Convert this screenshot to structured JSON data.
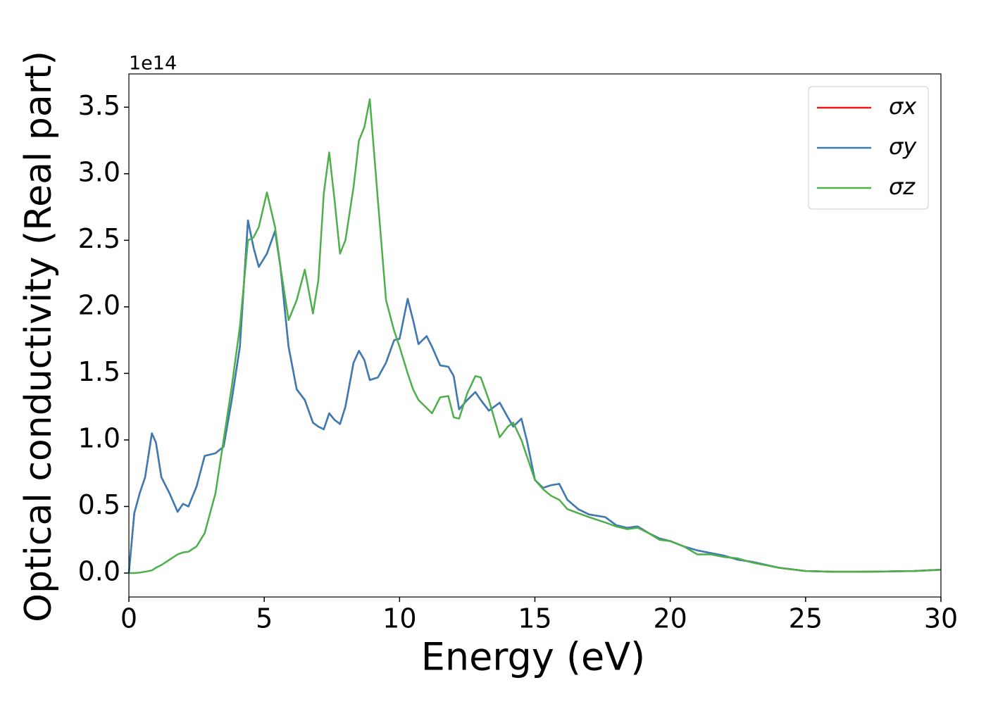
{
  "chart_data": {
    "type": "line",
    "xlabel": "Energy (eV)",
    "ylabel": "Optical conductivity (Real part)",
    "offset_label": "1e14",
    "xlim": [
      0,
      30
    ],
    "ylim": [
      -0.18,
      3.75
    ],
    "xticks": [
      0,
      5,
      10,
      15,
      20,
      25,
      30
    ],
    "yticks": [
      {
        "value": 0,
        "label": "0.0"
      },
      0.5,
      {
        "value": 1,
        "label": "1.0"
      },
      1.5,
      {
        "value": 2,
        "label": "2.0"
      },
      2.5,
      {
        "value": 3,
        "label": "3.0"
      },
      3.5
    ],
    "grid": false,
    "legend": "upper right",
    "x": [
      0,
      0.2,
      0.4,
      0.6,
      0.85,
      1.0,
      1.2,
      1.5,
      1.8,
      2.0,
      2.2,
      2.5,
      2.8,
      3.2,
      3.5,
      3.8,
      4.1,
      4.4,
      4.6,
      4.8,
      5.1,
      5.4,
      5.6,
      5.9,
      6.2,
      6.5,
      6.8,
      7.0,
      7.2,
      7.4,
      7.6,
      7.8,
      8.0,
      8.3,
      8.5,
      8.7,
      8.9,
      9.2,
      9.5,
      9.8,
      10.0,
      10.3,
      10.5,
      10.7,
      11.0,
      11.2,
      11.5,
      11.8,
      12.0,
      12.2,
      12.5,
      12.8,
      13.0,
      13.3,
      13.7,
      14.0,
      14.2,
      14.5,
      14.7,
      15.0,
      15.3,
      15.6,
      15.9,
      16.2,
      16.6,
      17.0,
      17.6,
      18.0,
      18.4,
      18.8,
      19.2,
      19.6,
      20.0,
      20.5,
      21.0,
      21.5,
      22.0,
      22.5,
      23.0,
      24.0,
      25.0,
      26.0,
      27.0,
      28.0,
      29.0,
      30.0
    ],
    "series": [
      {
        "name": "σx",
        "color": "#e41a1c",
        "values": [
          0,
          0.45,
          0.6,
          0.72,
          1.05,
          0.98,
          0.72,
          0.6,
          0.46,
          0.52,
          0.5,
          0.65,
          0.88,
          0.9,
          0.95,
          1.3,
          1.7,
          2.65,
          2.45,
          2.3,
          2.4,
          2.57,
          2.3,
          1.7,
          1.38,
          1.3,
          1.13,
          1.1,
          1.08,
          1.2,
          1.15,
          1.12,
          1.25,
          1.58,
          1.67,
          1.6,
          1.45,
          1.47,
          1.58,
          1.75,
          1.76,
          2.06,
          1.9,
          1.72,
          1.78,
          1.7,
          1.56,
          1.55,
          1.48,
          1.23,
          1.3,
          1.36,
          1.3,
          1.22,
          1.28,
          1.17,
          1.1,
          1.16,
          1.0,
          0.7,
          0.64,
          0.66,
          0.67,
          0.55,
          0.48,
          0.44,
          0.42,
          0.36,
          0.34,
          0.35,
          0.3,
          0.26,
          0.24,
          0.2,
          0.17,
          0.15,
          0.13,
          0.1,
          0.085,
          0.04,
          0.015,
          0.01,
          0.01,
          0.012,
          0.015,
          0.025
        ]
      },
      {
        "name": "σy",
        "color": "#377eb8",
        "values": [
          0,
          0.45,
          0.6,
          0.72,
          1.05,
          0.98,
          0.72,
          0.6,
          0.46,
          0.52,
          0.5,
          0.65,
          0.88,
          0.9,
          0.95,
          1.3,
          1.7,
          2.65,
          2.45,
          2.3,
          2.4,
          2.57,
          2.3,
          1.7,
          1.38,
          1.3,
          1.13,
          1.1,
          1.08,
          1.2,
          1.15,
          1.12,
          1.25,
          1.58,
          1.67,
          1.6,
          1.45,
          1.47,
          1.58,
          1.75,
          1.76,
          2.06,
          1.9,
          1.72,
          1.78,
          1.7,
          1.56,
          1.55,
          1.48,
          1.23,
          1.3,
          1.36,
          1.3,
          1.22,
          1.28,
          1.17,
          1.1,
          1.16,
          1.0,
          0.7,
          0.64,
          0.66,
          0.67,
          0.55,
          0.48,
          0.44,
          0.42,
          0.36,
          0.34,
          0.35,
          0.3,
          0.26,
          0.24,
          0.2,
          0.17,
          0.15,
          0.13,
          0.1,
          0.085,
          0.04,
          0.015,
          0.01,
          0.01,
          0.012,
          0.015,
          0.025
        ]
      },
      {
        "name": "σz",
        "color": "#4daf4a",
        "values": [
          0,
          0,
          0.003,
          0.01,
          0.02,
          0.04,
          0.06,
          0.1,
          0.14,
          0.155,
          0.16,
          0.2,
          0.3,
          0.6,
          1.0,
          1.4,
          1.85,
          2.5,
          2.52,
          2.6,
          2.86,
          2.6,
          2.3,
          1.9,
          2.05,
          2.28,
          1.95,
          2.2,
          2.85,
          3.16,
          2.8,
          2.4,
          2.5,
          2.9,
          3.25,
          3.35,
          3.56,
          2.8,
          2.05,
          1.82,
          1.7,
          1.5,
          1.38,
          1.3,
          1.24,
          1.2,
          1.32,
          1.33,
          1.17,
          1.16,
          1.35,
          1.48,
          1.47,
          1.3,
          1.02,
          1.1,
          1.13,
          1.0,
          0.88,
          0.7,
          0.63,
          0.58,
          0.55,
          0.48,
          0.45,
          0.42,
          0.38,
          0.35,
          0.33,
          0.34,
          0.3,
          0.25,
          0.24,
          0.2,
          0.14,
          0.14,
          0.12,
          0.11,
          0.08,
          0.04,
          0.015,
          0.01,
          0.01,
          0.012,
          0.015,
          0.025
        ]
      }
    ]
  }
}
